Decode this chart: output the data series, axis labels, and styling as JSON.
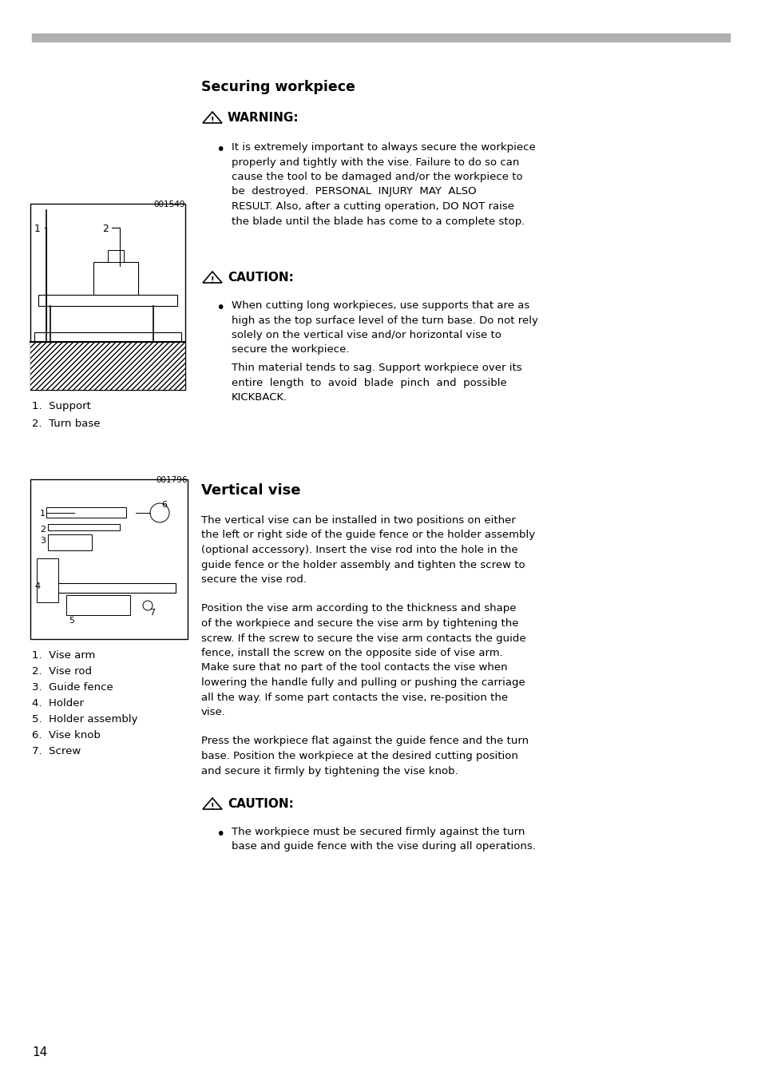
{
  "bg_color": "#ffffff",
  "header_bar_color": "#b0b0b0",
  "page_number": "14",
  "section_title": "Securing workpiece",
  "warning_title": "WARNING:",
  "warning_lines": [
    "It is extremely important to always secure the workpiece",
    "properly and tightly with the vise. Failure to do so can",
    "cause the tool to be damaged and/or the workpiece to",
    "be  destroyed.  PERSONAL  INJURY  MAY  ALSO",
    "RESULT. Also, after a cutting operation, DO NOT raise",
    "the blade until the blade has come to a complete stop."
  ],
  "caution1_title": "CAUTION:",
  "caution1_bullet_lines": [
    "When cutting long workpieces, use supports that are as",
    "high as the top surface level of the turn base. Do not rely",
    "solely on the vertical vise and/or horizontal vise to",
    "secure the workpiece."
  ],
  "caution1_extra_lines": [
    "Thin material tends to sag. Support workpiece over its",
    "entire  length  to  avoid  blade  pinch  and  possible",
    "KICKBACK."
  ],
  "fig1_id": "001549",
  "fig1_caption": [
    "1.  Support",
    "2.  Turn base"
  ],
  "fig2_id": "001796",
  "fig2_caption": [
    "1.  Vise arm",
    "2.  Vise rod",
    "3.  Guide fence",
    "4.  Holder",
    "5.  Holder assembly",
    "6.  Vise knob",
    "7.  Screw"
  ],
  "vertical_vise_title": "Vertical vise",
  "vv_para1_lines": [
    "The vertical vise can be installed in two positions on either",
    "the left or right side of the guide fence or the holder assembly",
    "(optional accessory). Insert the vise rod into the hole in the",
    "guide fence or the holder assembly and tighten the screw to",
    "secure the vise rod."
  ],
  "vv_para2_lines": [
    "Position the vise arm according to the thickness and shape",
    "of the workpiece and secure the vise arm by tightening the",
    "screw. If the screw to secure the vise arm contacts the guide",
    "fence, install the screw on the opposite side of vise arm.",
    "Make sure that no part of the tool contacts the vise when",
    "lowering the handle fully and pulling or pushing the carriage",
    "all the way. If some part contacts the vise, re-position the",
    "vise."
  ],
  "vv_para3_lines": [
    "Press the workpiece flat against the guide fence and the turn",
    "base. Position the workpiece at the desired cutting position",
    "and secure it firmly by tightening the vise knob."
  ],
  "caution2_title": "CAUTION:",
  "caution2_bullet_lines": [
    "The workpiece must be secured firmly against the turn",
    "base and guide fence with the vise during all operations."
  ]
}
